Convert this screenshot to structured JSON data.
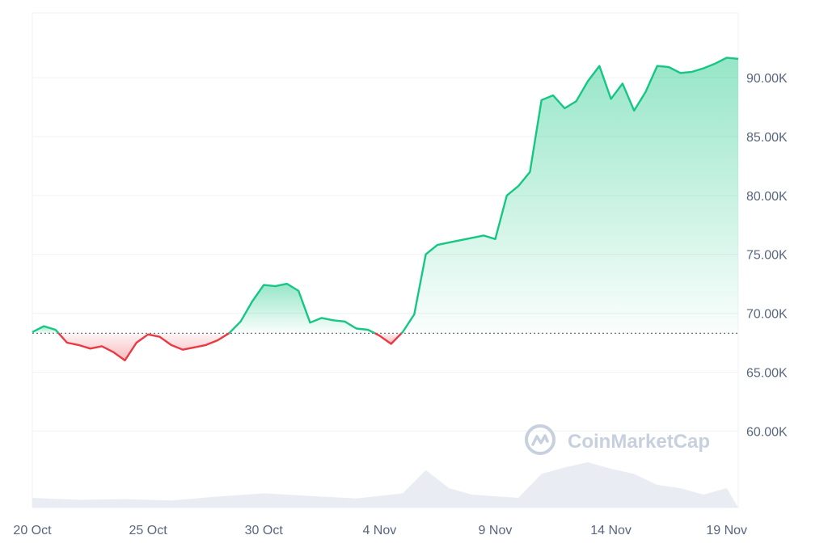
{
  "chart_data": {
    "type": "area",
    "title": "",
    "xlabel": "",
    "ylabel": "",
    "x_range": [
      "2024-10-20",
      "2024-11-19"
    ],
    "ylim": [
      53500,
      95500
    ],
    "baseline": 68300,
    "grid": true,
    "legend": "none",
    "x_ticks": [
      {
        "date": "2024-10-20",
        "label": "20 Oct"
      },
      {
        "date": "2024-10-25",
        "label": "25 Oct"
      },
      {
        "date": "2024-10-30",
        "label": "30 Oct"
      },
      {
        "date": "2024-11-04",
        "label": "4 Nov"
      },
      {
        "date": "2024-11-09",
        "label": "9 Nov"
      },
      {
        "date": "2024-11-14",
        "label": "14 Nov"
      },
      {
        "date": "2024-11-19",
        "label": "19 Nov"
      }
    ],
    "y_ticks": [
      {
        "value": 90000,
        "label": "90.00K"
      },
      {
        "value": 85000,
        "label": "85.00K"
      },
      {
        "value": 80000,
        "label": "80.00K"
      },
      {
        "value": 75000,
        "label": "75.00K"
      },
      {
        "value": 70000,
        "label": "70.00K"
      },
      {
        "value": 65000,
        "label": "65.00K"
      },
      {
        "value": 60000,
        "label": "60.00K"
      }
    ],
    "price_series": {
      "x": [
        "2024-10-20",
        "2024-10-20 12:00",
        "2024-10-21",
        "2024-10-21 12:00",
        "2024-10-22",
        "2024-10-22 12:00",
        "2024-10-23",
        "2024-10-23 12:00",
        "2024-10-24",
        "2024-10-24 12:00",
        "2024-10-25",
        "2024-10-25 12:00",
        "2024-10-26",
        "2024-10-26 12:00",
        "2024-10-27",
        "2024-10-27 12:00",
        "2024-10-28",
        "2024-10-28 12:00",
        "2024-10-29",
        "2024-10-29 12:00",
        "2024-10-30",
        "2024-10-30 12:00",
        "2024-10-31",
        "2024-10-31 12:00",
        "2024-11-01",
        "2024-11-01 12:00",
        "2024-11-02",
        "2024-11-02 12:00",
        "2024-11-03",
        "2024-11-03 12:00",
        "2024-11-04",
        "2024-11-04 12:00",
        "2024-11-05",
        "2024-11-05 12:00",
        "2024-11-06",
        "2024-11-06 12:00",
        "2024-11-07",
        "2024-11-07 12:00",
        "2024-11-08",
        "2024-11-08 12:00",
        "2024-11-09",
        "2024-11-09 12:00",
        "2024-11-10",
        "2024-11-10 12:00",
        "2024-11-11",
        "2024-11-11 12:00",
        "2024-11-12",
        "2024-11-12 12:00",
        "2024-11-13",
        "2024-11-13 12:00",
        "2024-11-14",
        "2024-11-14 12:00",
        "2024-11-15",
        "2024-11-15 12:00",
        "2024-11-16",
        "2024-11-16 12:00",
        "2024-11-17",
        "2024-11-17 12:00",
        "2024-11-18",
        "2024-11-18 12:00",
        "2024-11-19",
        "2024-11-19 12:00"
      ],
      "y": [
        68400,
        68900,
        68600,
        67500,
        67300,
        67000,
        67200,
        66700,
        66000,
        67500,
        68200,
        68000,
        67300,
        66900,
        67100,
        67300,
        67700,
        68300,
        69300,
        71000,
        72400,
        72300,
        72500,
        71900,
        69200,
        69600,
        69400,
        69300,
        68700,
        68600,
        68100,
        67400,
        68400,
        69900,
        75000,
        75800,
        76000,
        76200,
        76400,
        76600,
        76300,
        80000,
        80800,
        82000,
        88100,
        88500,
        87400,
        88000,
        89700,
        91000,
        88200,
        89500,
        87200,
        88800,
        91000,
        90900,
        90400,
        90500,
        90800,
        91200,
        91700,
        91600
      ]
    },
    "volume_series": {
      "x": [
        "2024-10-20",
        "2024-10-22",
        "2024-10-24",
        "2024-10-26",
        "2024-10-28",
        "2024-10-30",
        "2024-11-01",
        "2024-11-03",
        "2024-11-05",
        "2024-11-06",
        "2024-11-07",
        "2024-11-08",
        "2024-11-10",
        "2024-11-11",
        "2024-11-12",
        "2024-11-13",
        "2024-11-14",
        "2024-11-15",
        "2024-11-16",
        "2024-11-17",
        "2024-11-18",
        "2024-11-19"
      ],
      "relative": [
        0.15,
        0.12,
        0.13,
        0.11,
        0.17,
        0.22,
        0.18,
        0.14,
        0.22,
        0.58,
        0.3,
        0.2,
        0.15,
        0.52,
        0.62,
        0.7,
        0.6,
        0.52,
        0.35,
        0.3,
        0.2,
        0.3
      ]
    }
  },
  "watermark": {
    "text": "CoinMarketCap"
  },
  "colors": {
    "up_line": "#16c784",
    "down_line": "#ea3943",
    "up_fill": "#16c784",
    "down_fill": "#ea3943",
    "volume_fill": "#e9ecf2",
    "grid": "#eff2f5",
    "baseline": "#6b7280",
    "tick_text": "#58667e",
    "watermark": "#c7d0de"
  }
}
